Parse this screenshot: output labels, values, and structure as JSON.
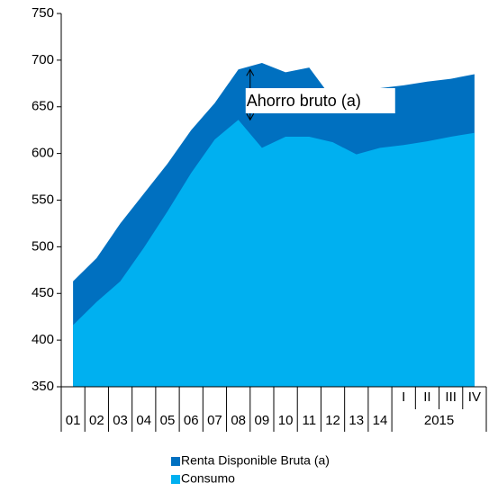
{
  "chart_data": {
    "type": "area",
    "categories": [
      "01",
      "02",
      "03",
      "04",
      "05",
      "06",
      "07",
      "08",
      "09",
      "10",
      "11",
      "12",
      "13",
      "14",
      "I",
      "II",
      "III",
      "IV"
    ],
    "category_groups": [
      {
        "label": "2015",
        "from": 14,
        "to": 17
      }
    ],
    "series": [
      {
        "name": "Renta Disponible Bruta (a)",
        "color": "#0070c0",
        "values": [
          463,
          488,
          525,
          557,
          589,
          625,
          654,
          690,
          697,
          687,
          692,
          658,
          656,
          670,
          673,
          677,
          680,
          685
        ]
      },
      {
        "name": "Consumo",
        "color": "#00b0f0",
        "values": [
          416,
          441,
          463,
          499,
          538,
          579,
          615,
          636,
          606,
          618,
          618,
          612,
          599,
          606,
          609,
          613,
          618,
          622
        ]
      }
    ],
    "annotation": "Ahorro bruto (a)",
    "ylim": [
      350,
      750
    ],
    "yticks": [
      350,
      400,
      450,
      500,
      550,
      600,
      650,
      700,
      750
    ]
  }
}
